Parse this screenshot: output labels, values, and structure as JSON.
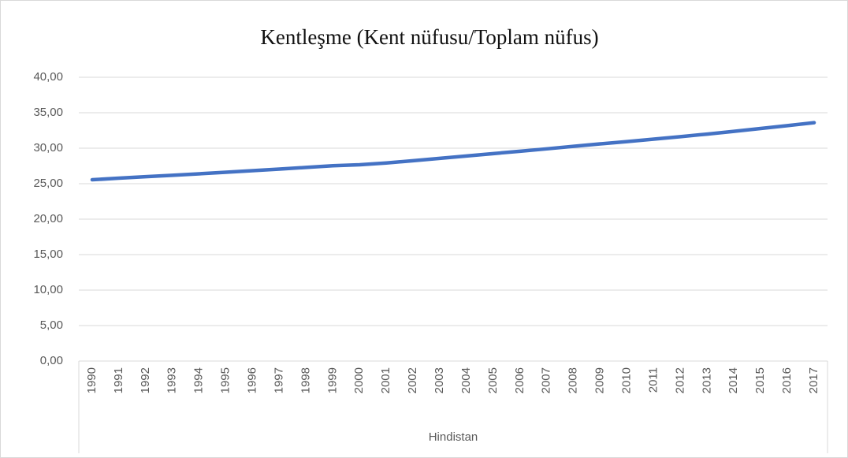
{
  "chart_data": {
    "type": "line",
    "title": "Kentleşme (Kent nüfusu/Toplam nüfus)",
    "categories": [
      "1990",
      "1991",
      "1992",
      "1993",
      "1994",
      "1995",
      "1996",
      "1997",
      "1998",
      "1999",
      "2000",
      "2001",
      "2002",
      "2003",
      "2004",
      "2005",
      "2006",
      "2007",
      "2008",
      "2009",
      "2010",
      "2011",
      "2012",
      "2013",
      "2014",
      "2015",
      "2016",
      "2017"
    ],
    "group_label": "Hindistan",
    "series": [
      {
        "name": "Hindistan",
        "color": "#4472c4",
        "values": [
          25.55,
          25.78,
          25.98,
          26.18,
          26.39,
          26.61,
          26.83,
          27.06,
          27.29,
          27.53,
          27.67,
          27.92,
          28.24,
          28.57,
          28.9,
          29.24,
          29.57,
          29.91,
          30.26,
          30.61,
          30.93,
          31.28,
          31.63,
          31.99,
          32.38,
          32.78,
          33.18,
          33.6
        ]
      }
    ],
    "ylim": [
      0,
      40
    ],
    "yticks": [
      {
        "value": 0,
        "label": "0,00"
      },
      {
        "value": 5,
        "label": "5,00"
      },
      {
        "value": 10,
        "label": "10,00"
      },
      {
        "value": 15,
        "label": "15,00"
      },
      {
        "value": 20,
        "label": "20,00"
      },
      {
        "value": 25,
        "label": "25,00"
      },
      {
        "value": 30,
        "label": "30,00"
      },
      {
        "value": 35,
        "label": "35,00"
      },
      {
        "value": 40,
        "label": "40,00"
      }
    ],
    "grid": true
  }
}
